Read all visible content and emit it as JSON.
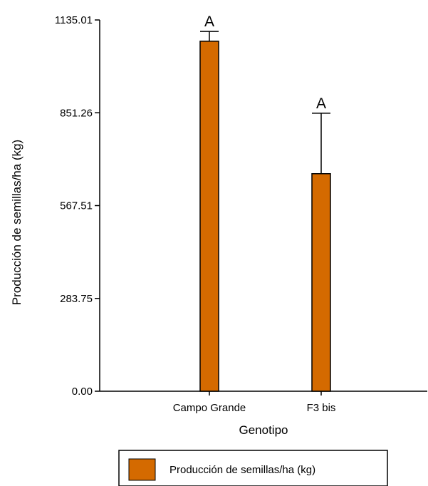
{
  "chart_data": {
    "type": "bar",
    "categories": [
      "Campo Grande",
      "F3 bis"
    ],
    "series": [
      {
        "name": "Producción de semillas/ha (kg)",
        "values": [
          1070,
          665
        ],
        "errors": [
          30,
          185
        ],
        "significance": [
          "A",
          "A"
        ]
      }
    ],
    "xlabel": "Genotipo",
    "ylabel": "Producción de semillas/ha (kg)",
    "ylim": [
      0,
      1135.01
    ],
    "yticks": [
      "0.00",
      "283.75",
      "567.51",
      "851.26",
      "1135.01"
    ],
    "bar_color": "#d46a00",
    "grid": false,
    "legend_position": "bottom"
  }
}
